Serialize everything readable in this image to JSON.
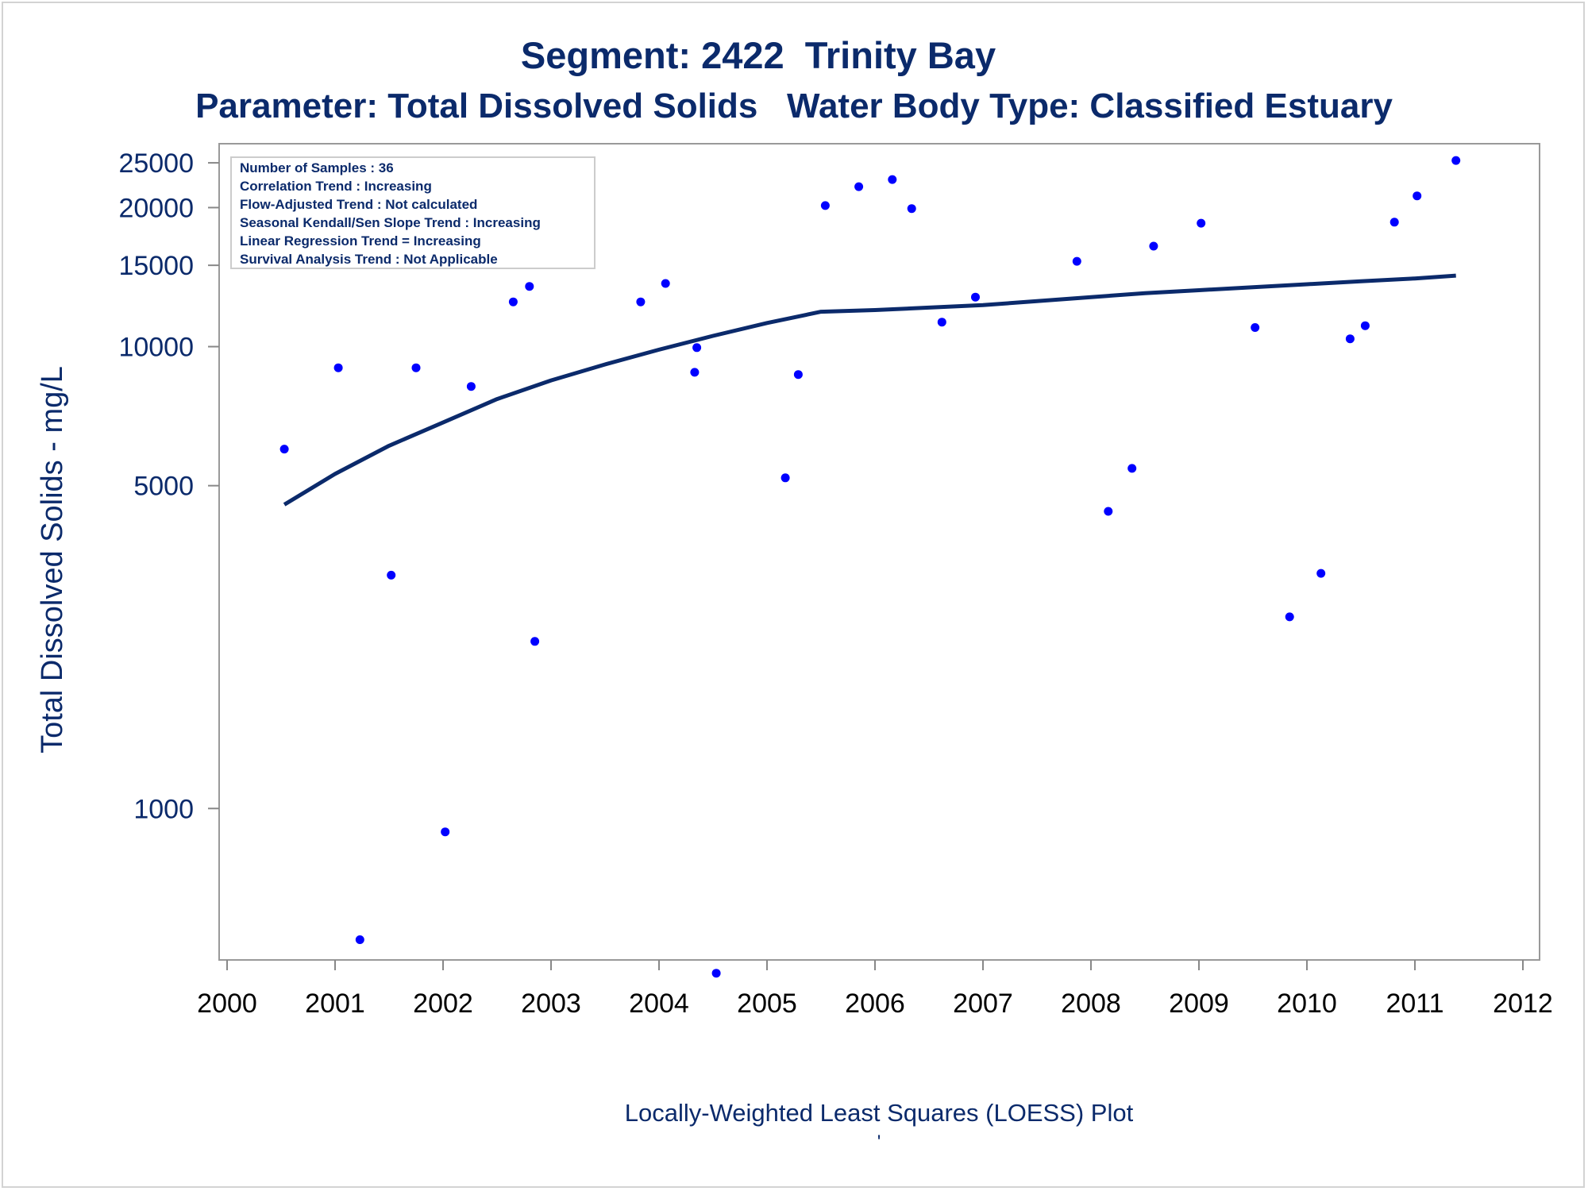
{
  "chart_data": {
    "type": "scatter",
    "title": "Segment: 2422  Trinity Bay",
    "subtitle": "Parameter: Total Dissolved Solids   Water Body Type: Classified Estuary",
    "ylabel": "Total Dissolved Solids - mg/L",
    "xlabel": "Locally-Weighted Least Squares (LOESS) Plot",
    "footnote": "'",
    "y_scale": "log",
    "xlim": [
      2000,
      2012
    ],
    "ylim": [
      470,
      27500
    ],
    "x_ticks": [
      "2000",
      "2001",
      "2002",
      "2003",
      "2004",
      "2005",
      "2006",
      "2007",
      "2008",
      "2009",
      "2010",
      "2011",
      "2012"
    ],
    "y_ticks": [
      1000,
      5000,
      10000,
      15000,
      20000,
      25000
    ],
    "y_tick_labels": [
      "1000",
      "5000",
      "10000",
      "15000",
      "20000",
      "25000"
    ],
    "legend_box": {
      "placement": "top-left",
      "lines": [
        "Number of Samples : 36",
        "Correlation Trend : Increasing",
        "Flow-Adjusted Trend : Not calculated",
        "Seasonal Kendall/Sen Slope Trend : Increasing",
        "Linear Regression Trend = Increasing",
        "Survival Analysis Trend : Not Applicable"
      ]
    },
    "series": [
      {
        "kind": "points",
        "color": "#0000ff",
        "points": [
          [
            2000.53,
            6000
          ],
          [
            2001.03,
            9000
          ],
          [
            2001.23,
            520
          ],
          [
            2001.52,
            3200
          ],
          [
            2001.75,
            9000
          ],
          [
            2002.02,
            890
          ],
          [
            2002.26,
            8200
          ],
          [
            2002.65,
            12500
          ],
          [
            2002.8,
            13500
          ],
          [
            2002.85,
            2300
          ],
          [
            2003.83,
            12500
          ],
          [
            2004.06,
            13700
          ],
          [
            2004.33,
            8800
          ],
          [
            2004.35,
            9950
          ],
          [
            2004.53,
            440
          ],
          [
            2005.17,
            5200
          ],
          [
            2005.29,
            8700
          ],
          [
            2005.54,
            20200
          ],
          [
            2005.85,
            22200
          ],
          [
            2006.16,
            23000
          ],
          [
            2006.34,
            19900
          ],
          [
            2006.62,
            11300
          ],
          [
            2006.93,
            12800
          ],
          [
            2007.87,
            15300
          ],
          [
            2008.16,
            4400
          ],
          [
            2008.38,
            5450
          ],
          [
            2008.58,
            16500
          ],
          [
            2009.02,
            18500
          ],
          [
            2009.52,
            11000
          ],
          [
            2009.84,
            2600
          ],
          [
            2010.13,
            3230
          ],
          [
            2010.4,
            10400
          ],
          [
            2010.54,
            11100
          ],
          [
            2010.81,
            18600
          ],
          [
            2011.02,
            21200
          ],
          [
            2011.38,
            25300
          ]
        ]
      },
      {
        "kind": "loess",
        "color": "#0b2a6b",
        "points": [
          [
            2000.53,
            4550
          ],
          [
            2001.0,
            5300
          ],
          [
            2001.5,
            6100
          ],
          [
            2002.0,
            6850
          ],
          [
            2002.5,
            7700
          ],
          [
            2003.0,
            8450
          ],
          [
            2003.5,
            9150
          ],
          [
            2004.0,
            9850
          ],
          [
            2004.5,
            10550
          ],
          [
            2005.0,
            11250
          ],
          [
            2005.5,
            11900
          ],
          [
            2006.0,
            12000
          ],
          [
            2006.5,
            12150
          ],
          [
            2007.0,
            12300
          ],
          [
            2007.5,
            12550
          ],
          [
            2008.0,
            12800
          ],
          [
            2008.5,
            13050
          ],
          [
            2009.0,
            13250
          ],
          [
            2009.5,
            13450
          ],
          [
            2010.0,
            13650
          ],
          [
            2010.5,
            13850
          ],
          [
            2011.0,
            14050
          ],
          [
            2011.38,
            14250
          ]
        ]
      }
    ]
  }
}
